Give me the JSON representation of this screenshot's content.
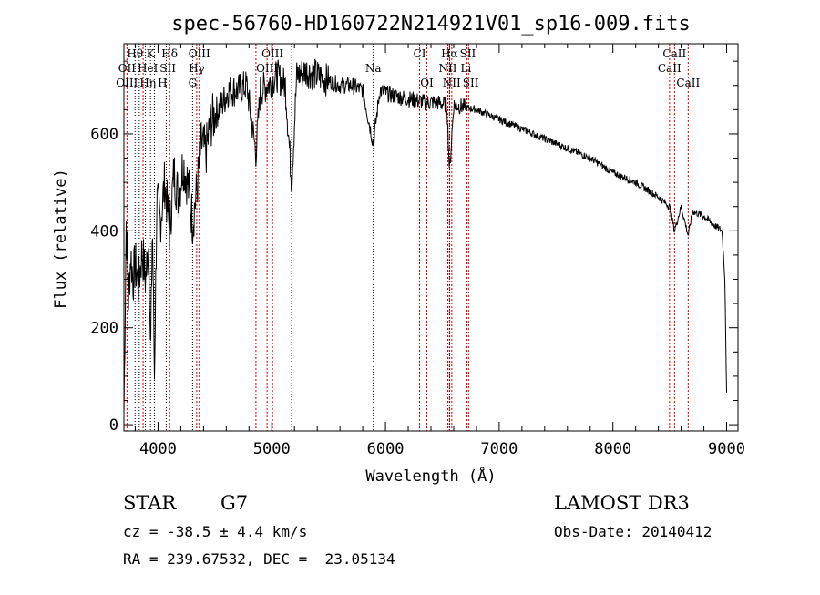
{
  "chart_data": {
    "type": "line",
    "title": "spec-56760-HD160722N214921V01_sp16-009.fits",
    "xlabel": "Wavelength (Å)",
    "ylabel": "Flux (relative)",
    "xlim": [
      3700,
      9100
    ],
    "ylim": [
      -13,
      786
    ],
    "xticks": [
      4000,
      5000,
      6000,
      7000,
      8000,
      9000
    ],
    "yticks": [
      0,
      200,
      400,
      600
    ],
    "grid": false,
    "series": [
      {
        "name": "spectrum",
        "x": [
          3700,
          3720,
          3740,
          3760,
          3780,
          3800,
          3830,
          3860,
          3890,
          3920,
          3934,
          3950,
          3968,
          3990,
          4020,
          4060,
          4102,
          4140,
          4180,
          4220,
          4260,
          4304,
          4340,
          4380,
          4420,
          4460,
          4500,
          4560,
          4620,
          4700,
          4780,
          4861,
          4900,
          4960,
          5050,
          5120,
          5175,
          5220,
          5300,
          5400,
          5500,
          5600,
          5700,
          5800,
          5893,
          5950,
          6050,
          6150,
          6250,
          6350,
          6450,
          6540,
          6563,
          6600,
          6700,
          6800,
          6900,
          7000,
          7200,
          7400,
          7600,
          7800,
          8000,
          8200,
          8400,
          8498,
          8542,
          8600,
          8662,
          8700,
          8800,
          8900,
          8960,
          8985,
          9000
        ],
        "y": [
          20,
          420,
          260,
          350,
          300,
          330,
          290,
          360,
          300,
          380,
          120,
          420,
          100,
          460,
          420,
          500,
          400,
          520,
          470,
          540,
          500,
          420,
          480,
          580,
          560,
          620,
          640,
          660,
          690,
          690,
          700,
          560,
          690,
          700,
          720,
          700,
          500,
          720,
          730,
          720,
          710,
          700,
          700,
          690,
          580,
          690,
          680,
          675,
          670,
          665,
          665,
          660,
          520,
          660,
          655,
          650,
          640,
          630,
          610,
          590,
          570,
          550,
          520,
          500,
          470,
          450,
          400,
          450,
          390,
          440,
          430,
          410,
          400,
          300,
          60
        ]
      }
    ]
  },
  "line_labels": {
    "row1": [
      {
        "t": "Hθ",
        "w": 3798
      },
      {
        "t": "K",
        "w": 3934
      },
      {
        "t": "Hδ",
        "w": 4102
      },
      {
        "t": "OIII",
        "w": 4363
      },
      {
        "t": "OIII",
        "w": 5007
      },
      {
        "t": "CI",
        "w": 6300
      },
      {
        "t": "Hα",
        "w": 6563
      },
      {
        "t": "SII",
        "w": 6717
      },
      {
        "t": "CaII",
        "w": 8542
      }
    ],
    "row2": [
      {
        "t": "OII",
        "w": 3727
      },
      {
        "t": "HeI",
        "w": 3889
      },
      {
        "t": "SII",
        "w": 4072
      },
      {
        "t": "Hγ",
        "w": 4340
      },
      {
        "t": "OIII",
        "w": 4959
      },
      {
        "t": "Na",
        "w": 5893
      },
      {
        "t": "NII",
        "w": 6548
      },
      {
        "t": "Li",
        "w": 6708
      },
      {
        "t": "CaII",
        "w": 8498
      }
    ],
    "row3": [
      {
        "t": "OIII",
        "w": 3727
      },
      {
        "t": "Hη",
        "w": 3835
      },
      {
        "t": "H",
        "w": 3968
      },
      {
        "t": "G",
        "w": 4304
      },
      {
        "t": "OI",
        "w": 6364
      },
      {
        "t": "NII",
        "w": 6583
      },
      {
        "t": "SII",
        "w": 6731
      },
      {
        "t": "CaII",
        "w": 8662
      }
    ]
  },
  "emission_lines": [
    3727,
    3869,
    4102,
    4340,
    4363,
    4861,
    4959,
    5007,
    6300,
    6364,
    6548,
    6563,
    6583,
    6717,
    6731,
    8498,
    8542,
    8662
  ],
  "absorption_lines": [
    3798,
    3835,
    3889,
    3934,
    3968,
    4072,
    4304,
    5175,
    5893,
    6563,
    6708
  ],
  "info": {
    "class": "STAR",
    "subclass": "G7",
    "cz": "cz = -38.5 ± 4.4 km/s",
    "radec": "RA = 239.67532, DEC =  23.05134",
    "survey": "LAMOST DR3",
    "obsdate": "Obs-Date: 20140412"
  },
  "colors": {
    "emission": "#cc0000",
    "absorption": "#000000"
  }
}
